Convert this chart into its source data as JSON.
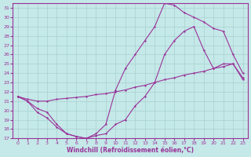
{
  "xlabel": "Windchill (Refroidissement éolien,°C)",
  "xlim": [
    -0.5,
    23.5
  ],
  "ylim": [
    17,
    31.5
  ],
  "xticks": [
    0,
    1,
    2,
    3,
    4,
    5,
    6,
    7,
    8,
    9,
    10,
    11,
    12,
    13,
    14,
    15,
    16,
    17,
    18,
    19,
    20,
    21,
    22,
    23
  ],
  "yticks": [
    17,
    18,
    19,
    20,
    21,
    22,
    23,
    24,
    25,
    26,
    27,
    28,
    29,
    30,
    31
  ],
  "background_color": "#c5e8e8",
  "grid_color": "#a8d0d0",
  "line_color": "#993399",
  "line1_x": [
    0,
    1,
    2,
    3,
    4,
    5,
    6,
    7,
    8,
    9,
    10,
    11,
    12,
    13,
    14,
    15,
    16,
    17,
    18,
    19,
    20,
    21,
    22,
    23
  ],
  "line1_y": [
    21.5,
    21.0,
    20.2,
    19.8,
    18.5,
    17.5,
    17.2,
    17.0,
    17.3,
    17.5,
    18.5,
    19.0,
    20.5,
    21.5,
    23.0,
    26.0,
    27.5,
    28.5,
    29.0,
    26.5,
    24.5,
    25.0,
    25.0,
    23.5
  ],
  "line2_x": [
    0,
    1,
    2,
    3,
    4,
    5,
    6,
    7,
    8,
    9,
    10,
    11,
    12,
    13,
    14,
    15,
    16,
    17,
    18,
    19,
    20,
    21,
    22,
    23
  ],
  "line2_y": [
    21.5,
    21.2,
    21.0,
    21.0,
    21.2,
    21.3,
    21.4,
    21.5,
    21.7,
    21.8,
    22.0,
    22.2,
    22.5,
    22.7,
    23.0,
    23.3,
    23.5,
    23.8,
    24.0,
    24.2,
    24.5,
    24.7,
    25.0,
    23.3
  ],
  "line3_x": [
    0,
    1,
    2,
    3,
    4,
    5,
    6,
    7,
    8,
    9,
    10,
    11,
    12,
    13,
    14,
    15,
    16,
    17,
    18,
    19,
    20,
    21,
    22,
    23
  ],
  "line3_y": [
    21.5,
    21.0,
    19.8,
    19.2,
    18.2,
    17.5,
    17.2,
    17.0,
    17.5,
    18.5,
    22.2,
    24.5,
    26.0,
    27.5,
    29.0,
    31.5,
    31.3,
    30.5,
    30.0,
    29.5,
    28.8,
    28.5,
    26.0,
    24.0
  ]
}
